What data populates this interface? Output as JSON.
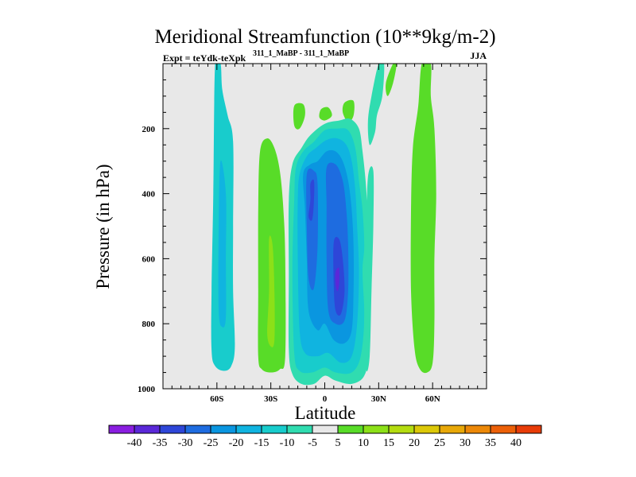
{
  "chart_data": {
    "type": "contour",
    "title": "Meridional Streamfunction (10**9kg/m-2)",
    "subtitle_left": "Expt = teYdk-teXpk",
    "subtitle_left_superscript": "311_1_MaBP - 311_1_MaBP",
    "subtitle_right": "JJA",
    "xlabel": "Latitude",
    "ylabel": "Pressure (in hPa)",
    "xlim": [
      -90,
      90
    ],
    "ylim": [
      1000,
      0
    ],
    "x_ticks": [
      {
        "value": -60,
        "label": "60S"
      },
      {
        "value": -30,
        "label": "30S"
      },
      {
        "value": 0,
        "label": "0"
      },
      {
        "value": 30,
        "label": "30N"
      },
      {
        "value": 60,
        "label": "60N"
      }
    ],
    "y_ticks": [
      {
        "value": 200,
        "label": "200"
      },
      {
        "value": 400,
        "label": "400"
      },
      {
        "value": 600,
        "label": "600"
      },
      {
        "value": 800,
        "label": "800"
      },
      {
        "value": 1000,
        "label": "1000"
      }
    ],
    "background_color": "#e8e8e8",
    "levels": [
      -40,
      -35,
      -30,
      -25,
      -20,
      -15,
      -10,
      -5,
      5,
      10,
      15,
      20,
      25,
      30,
      35,
      40
    ],
    "level_labels": [
      "-40",
      "-35",
      "-30",
      "-25",
      "-20",
      "-15",
      "-10",
      "-5",
      "5",
      "10",
      "15",
      "20",
      "25",
      "30",
      "35",
      "40"
    ],
    "colors": [
      "#8a1ee0",
      "#5a28d8",
      "#2e46d8",
      "#1e6ce0",
      "#0a96e0",
      "#10b4e0",
      "#18cccc",
      "#30dcb0",
      "#e8e8e8",
      "#58dc28",
      "#8ce018",
      "#b4dc10",
      "#dcc808",
      "#e8a808",
      "#ec8808",
      "#ec6008",
      "#e83c08"
    ],
    "regions": [
      {
        "name": "cell-60s",
        "level": -10,
        "points": [
          [
            -61,
            0
          ],
          [
            -58,
            0
          ],
          [
            -57,
            80
          ],
          [
            -54,
            160
          ],
          [
            -51,
            240
          ],
          [
            -51,
            500
          ],
          [
            -51,
            700
          ],
          [
            -50,
            870
          ],
          [
            -52,
            930
          ],
          [
            -56,
            945
          ],
          [
            -61,
            930
          ],
          [
            -63,
            880
          ],
          [
            -63,
            700
          ],
          [
            -62,
            400
          ]
        ]
      },
      {
        "name": "cell-60s-core",
        "level": -15,
        "points": [
          [
            -58,
            300
          ],
          [
            -55,
            400
          ],
          [
            -55,
            600
          ],
          [
            -55,
            780
          ],
          [
            -57,
            810
          ],
          [
            -59,
            760
          ],
          [
            -59,
            500
          ]
        ]
      },
      {
        "name": "cell-30s",
        "level": 10,
        "points": [
          [
            -36,
            270
          ],
          [
            -32,
            230
          ],
          [
            -28,
            260
          ],
          [
            -25,
            330
          ],
          [
            -23,
            450
          ],
          [
            -22,
            600
          ],
          [
            -22,
            900
          ],
          [
            -25,
            940
          ],
          [
            -30,
            950
          ],
          [
            -35,
            940
          ],
          [
            -37,
            900
          ],
          [
            -37,
            700
          ],
          [
            -37,
            450
          ]
        ]
      },
      {
        "name": "cell-30s-core",
        "level": 15,
        "points": [
          [
            -31,
            540
          ],
          [
            -29,
            560
          ],
          [
            -28,
            700
          ],
          [
            -28,
            850
          ],
          [
            -30,
            870
          ],
          [
            -32,
            830
          ],
          [
            -31,
            700
          ]
        ]
      },
      {
        "name": "cell-15s-small",
        "level": 10,
        "points": [
          [
            -17,
            130
          ],
          [
            -12,
            125
          ],
          [
            -11,
            160
          ],
          [
            -14,
            200
          ],
          [
            -17,
            190
          ]
        ]
      },
      {
        "name": "cell-2s-small",
        "level": 10,
        "points": [
          [
            -2,
            140
          ],
          [
            2,
            135
          ],
          [
            4,
            160
          ],
          [
            0,
            175
          ],
          [
            -3,
            165
          ]
        ]
      },
      {
        "name": "cell-10n-small",
        "level": 10,
        "points": [
          [
            11,
            120
          ],
          [
            16,
            115
          ],
          [
            16,
            160
          ],
          [
            13,
            180
          ],
          [
            10,
            150
          ]
        ]
      },
      {
        "name": "cell-eq-5",
        "level": -5,
        "points": [
          [
            -18,
            310
          ],
          [
            -13,
            260
          ],
          [
            -8,
            220
          ],
          [
            0,
            185
          ],
          [
            8,
            175
          ],
          [
            14,
            170
          ],
          [
            19,
            200
          ],
          [
            21,
            270
          ],
          [
            23,
            380
          ],
          [
            24,
            500
          ],
          [
            25,
            680
          ],
          [
            24,
            890
          ],
          [
            22,
            960
          ],
          [
            15,
            985
          ],
          [
            6,
            975
          ],
          [
            0,
            960
          ],
          [
            -6,
            985
          ],
          [
            -13,
            985
          ],
          [
            -18,
            955
          ],
          [
            -20,
            880
          ],
          [
            -20,
            650
          ],
          [
            -20,
            420
          ]
        ]
      },
      {
        "name": "cell-eq-10",
        "level": -10,
        "points": [
          [
            -16,
            320
          ],
          [
            -12,
            270
          ],
          [
            -6,
            240
          ],
          [
            0,
            205
          ],
          [
            7,
            200
          ],
          [
            13,
            205
          ],
          [
            17,
            260
          ],
          [
            19,
            360
          ],
          [
            21,
            450
          ],
          [
            22,
            560
          ],
          [
            21,
            640
          ],
          [
            22,
            780
          ],
          [
            20,
            900
          ],
          [
            15,
            950
          ],
          [
            6,
            950
          ],
          [
            0,
            935
          ],
          [
            -7,
            950
          ],
          [
            -14,
            945
          ],
          [
            -17,
            890
          ],
          [
            -18,
            640
          ],
          [
            -17,
            420
          ]
        ]
      },
      {
        "name": "cell-eq-15",
        "level": -15,
        "points": [
          [
            -14,
            340
          ],
          [
            -10,
            285
          ],
          [
            -5,
            260
          ],
          [
            1,
            235
          ],
          [
            7,
            230
          ],
          [
            12,
            250
          ],
          [
            15,
            300
          ],
          [
            17,
            390
          ],
          [
            18,
            500
          ],
          [
            19,
            640
          ],
          [
            18,
            800
          ],
          [
            15,
            900
          ],
          [
            9,
            920
          ],
          [
            2,
            890
          ],
          [
            -4,
            900
          ],
          [
            -11,
            890
          ],
          [
            -14,
            820
          ],
          [
            -15,
            600
          ],
          [
            -15,
            420
          ]
        ]
      },
      {
        "name": "cell-eq-20",
        "level": -20,
        "points": [
          [
            -12,
            340
          ],
          [
            -8,
            310
          ],
          [
            -4,
            300
          ],
          [
            1,
            270
          ],
          [
            6,
            270
          ],
          [
            10,
            300
          ],
          [
            13,
            360
          ],
          [
            15,
            450
          ],
          [
            16,
            560
          ],
          [
            16,
            700
          ],
          [
            15,
            820
          ],
          [
            11,
            860
          ],
          [
            5,
            850
          ],
          [
            0,
            800
          ],
          [
            -4,
            820
          ],
          [
            -9,
            760
          ],
          [
            -10,
            600
          ],
          [
            -11,
            450
          ]
        ]
      },
      {
        "name": "cell-eq-25",
        "level": -25,
        "points": [
          [
            -10,
            340
          ],
          [
            -6,
            330
          ],
          [
            -4,
            370
          ],
          [
            -4,
            560
          ],
          [
            -6,
            690
          ],
          [
            -9,
            660
          ],
          [
            -10,
            500
          ]
        ]
      },
      {
        "name": "cell-eq-25b",
        "level": -25,
        "points": [
          [
            1,
            320
          ],
          [
            6,
            310
          ],
          [
            10,
            360
          ],
          [
            12,
            450
          ],
          [
            13,
            560
          ],
          [
            13,
            700
          ],
          [
            11,
            790
          ],
          [
            6,
            800
          ],
          [
            2,
            760
          ],
          [
            1,
            600
          ],
          [
            1,
            440
          ]
        ]
      },
      {
        "name": "cell-eq-30",
        "level": -30,
        "points": [
          [
            -8,
            370
          ],
          [
            -6,
            360
          ],
          [
            -6,
            420
          ],
          [
            -7,
            480
          ],
          [
            -9,
            470
          ],
          [
            -8,
            420
          ]
        ]
      },
      {
        "name": "cell-eq-30b",
        "level": -30,
        "points": [
          [
            5,
            550
          ],
          [
            8,
            540
          ],
          [
            10,
            600
          ],
          [
            11,
            700
          ],
          [
            9,
            770
          ],
          [
            6,
            760
          ],
          [
            5,
            680
          ]
        ]
      },
      {
        "name": "cell-eq-35",
        "level": -35,
        "points": [
          [
            6,
            640
          ],
          [
            8,
            630
          ],
          [
            8,
            680
          ],
          [
            7,
            700
          ],
          [
            6,
            680
          ]
        ]
      },
      {
        "name": "cell-25n-5",
        "level": -5,
        "points": [
          [
            26,
            100
          ],
          [
            30,
            0
          ],
          [
            33,
            0
          ],
          [
            32,
            100
          ],
          [
            29,
            160
          ],
          [
            28,
            210
          ],
          [
            25,
            250
          ],
          [
            24,
            180
          ]
        ]
      },
      {
        "name": "cell-22n-5",
        "level": -5,
        "points": [
          [
            24,
            350
          ],
          [
            27,
            330
          ],
          [
            27,
            500
          ],
          [
            26,
            700
          ],
          [
            25,
            900
          ],
          [
            23,
            940
          ],
          [
            22,
            800
          ],
          [
            23,
            550
          ]
        ]
      },
      {
        "name": "cell-60n",
        "level": 10,
        "points": [
          [
            54,
            0
          ],
          [
            59,
            0
          ],
          [
            59,
            100
          ],
          [
            61,
            200
          ],
          [
            62,
            400
          ],
          [
            61,
            600
          ],
          [
            61,
            800
          ],
          [
            60,
            920
          ],
          [
            57,
            950
          ],
          [
            53,
            940
          ],
          [
            50,
            880
          ],
          [
            48,
            700
          ],
          [
            48,
            450
          ],
          [
            49,
            260
          ],
          [
            52,
            130
          ]
        ]
      },
      {
        "name": "cell-40n-small",
        "level": 10,
        "points": [
          [
            38,
            0
          ],
          [
            40,
            0
          ],
          [
            38,
            60
          ],
          [
            35,
            100
          ],
          [
            34,
            60
          ]
        ]
      }
    ]
  }
}
